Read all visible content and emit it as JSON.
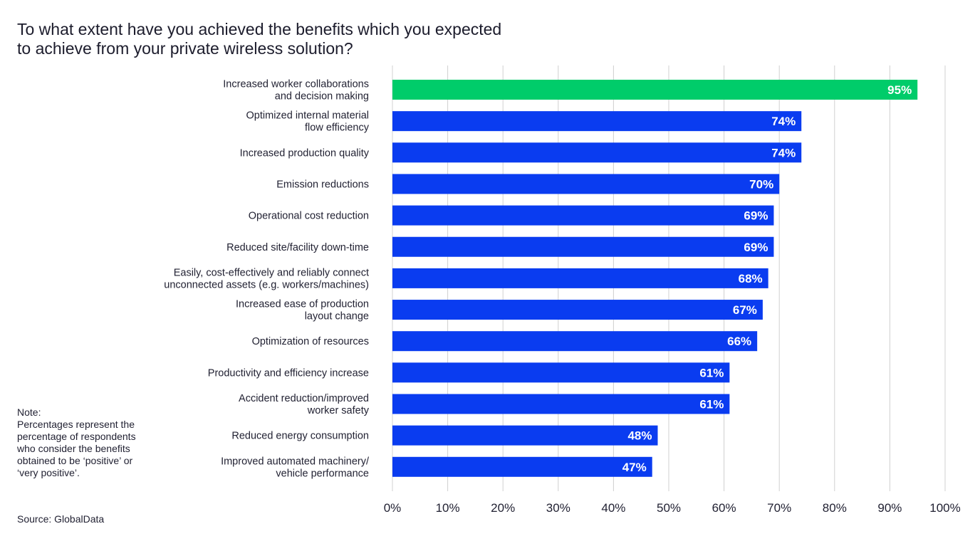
{
  "title_lines": [
    "To what extent have you achieved the benefits which you expected",
    "to achieve from your private wireless solution?"
  ],
  "note": {
    "heading": "Note:",
    "lines": [
      "Percentages represent the",
      "percentage of respondents",
      "who consider the benefits",
      "obtained to be ‘positive’ or",
      "‘very positive’."
    ]
  },
  "source": "Source: GlobalData",
  "colors": {
    "highlight": "#00cc6a",
    "bar": "#0a3cf0",
    "grid": "#d0d0d0",
    "axis": "#d0d0d0"
  },
  "chart_data": {
    "type": "bar",
    "orientation": "horizontal",
    "title": "To what extent have you achieved the benefits which you expected to achieve from your private wireless solution?",
    "xlabel": "",
    "ylabel": "",
    "xlim": [
      0,
      100
    ],
    "xticks": [
      "0%",
      "10%",
      "20%",
      "30%",
      "40%",
      "50%",
      "60%",
      "70%",
      "80%",
      "90%",
      "100%"
    ],
    "grid": true,
    "categories": [
      [
        "Increased worker collaborations",
        "and decision making"
      ],
      [
        "Optimized internal material",
        "flow efficiency"
      ],
      [
        "Increased production quality"
      ],
      [
        "Emission reductions"
      ],
      [
        "Operational cost reduction"
      ],
      [
        "Reduced site/facility down-time"
      ],
      [
        "Easily, cost-effectively and reliably connect",
        "unconnected assets (e.g. workers/machines)"
      ],
      [
        "Increased ease of production",
        "layout change"
      ],
      [
        "Optimization of resources"
      ],
      [
        "Productivity and efficiency increase"
      ],
      [
        "Accident reduction/improved",
        "worker safety"
      ],
      [
        "Reduced energy consumption"
      ],
      [
        "Improved automated machinery/",
        "vehicle performance"
      ]
    ],
    "values": [
      95,
      74,
      74,
      70,
      69,
      69,
      68,
      67,
      66,
      61,
      61,
      48,
      47
    ],
    "value_labels": [
      "95%",
      "74%",
      "74%",
      "70%",
      "69%",
      "69%",
      "68%",
      "67%",
      "66%",
      "61%",
      "61%",
      "48%",
      "47%"
    ],
    "highlight_index": 0
  }
}
